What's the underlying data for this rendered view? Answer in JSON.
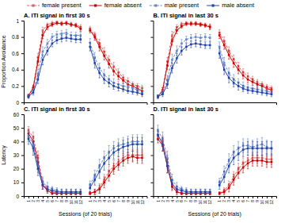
{
  "chart_data": [
    {
      "type": "line",
      "title": "A. ITI signal in first 30 s",
      "ylabel": "Proportion Avoidance",
      "categories": [
        "1",
        "2",
        "3",
        "4",
        "5",
        "6",
        "7",
        "8",
        "9",
        "10",
        "11",
        "12",
        null,
        "1",
        "2",
        "3",
        "4",
        "5",
        "6",
        "7",
        "8",
        "9",
        "10",
        "11",
        "12"
      ],
      "ylim": [
        0,
        1
      ],
      "yticks": [
        0,
        0.2,
        0.4,
        0.6,
        0.8,
        1
      ],
      "tick_labels": "y",
      "series": [
        {
          "color": "#e06060",
          "line_style": "dashed",
          "marker": "square",
          "values": [
            0.08,
            0.18,
            0.55,
            0.88,
            0.95,
            0.97,
            0.98,
            0.97,
            0.97,
            0.96,
            0.95,
            0.92,
            null,
            0.9,
            0.82,
            0.72,
            0.62,
            0.52,
            0.44,
            0.37,
            0.3,
            0.26,
            0.22,
            0.2,
            0.18
          ],
          "errors": [
            0.02,
            0.03,
            0.05,
            0.04,
            0.02,
            0.02,
            0.01,
            0.02,
            0.02,
            0.02,
            0.02,
            0.03,
            null,
            0.03,
            0.04,
            0.05,
            0.05,
            0.05,
            0.05,
            0.04,
            0.04,
            0.04,
            0.03,
            0.03,
            0.03
          ]
        },
        {
          "color": "#cc0000",
          "line_style": "solid",
          "marker": "square",
          "values": [
            0.08,
            0.18,
            0.5,
            0.82,
            0.92,
            0.95,
            0.97,
            0.96,
            0.97,
            0.95,
            0.94,
            0.9,
            null,
            0.88,
            0.8,
            0.68,
            0.57,
            0.47,
            0.38,
            0.32,
            0.27,
            0.22,
            0.2,
            0.17,
            0.14
          ],
          "errors": [
            0.02,
            0.03,
            0.05,
            0.04,
            0.03,
            0.02,
            0.02,
            0.02,
            0.02,
            0.02,
            0.02,
            0.03,
            null,
            0.03,
            0.04,
            0.05,
            0.05,
            0.05,
            0.05,
            0.04,
            0.04,
            0.04,
            0.03,
            0.03,
            0.03
          ]
        },
        {
          "color": "#6688cc",
          "line_style": "dashed",
          "marker": "square",
          "values": [
            0.07,
            0.14,
            0.35,
            0.62,
            0.72,
            0.8,
            0.83,
            0.84,
            0.85,
            0.82,
            0.82,
            0.82,
            null,
            0.73,
            0.55,
            0.42,
            0.34,
            0.28,
            0.24,
            0.22,
            0.2,
            0.19,
            0.18,
            0.15,
            0.12
          ],
          "errors": [
            0.02,
            0.03,
            0.05,
            0.06,
            0.05,
            0.04,
            0.04,
            0.04,
            0.04,
            0.04,
            0.04,
            0.04,
            null,
            0.05,
            0.06,
            0.06,
            0.06,
            0.05,
            0.05,
            0.04,
            0.04,
            0.04,
            0.03,
            0.03,
            0.03
          ]
        },
        {
          "color": "#2244aa",
          "line_style": "solid",
          "marker": "square",
          "values": [
            0.07,
            0.12,
            0.28,
            0.52,
            0.63,
            0.72,
            0.76,
            0.78,
            0.79,
            0.78,
            0.77,
            0.77,
            null,
            0.68,
            0.48,
            0.36,
            0.28,
            0.24,
            0.2,
            0.18,
            0.16,
            0.14,
            0.13,
            0.12,
            0.1
          ],
          "errors": [
            0.02,
            0.03,
            0.05,
            0.06,
            0.05,
            0.04,
            0.04,
            0.04,
            0.04,
            0.04,
            0.04,
            0.04,
            null,
            0.05,
            0.06,
            0.06,
            0.05,
            0.05,
            0.04,
            0.04,
            0.03,
            0.03,
            0.03,
            0.03,
            0.03
          ]
        }
      ]
    },
    {
      "type": "line",
      "title": "B. ITI signal in last 30 s",
      "categories": [
        "1",
        "2",
        "3",
        "4",
        "5",
        "6",
        "7",
        "8",
        "9",
        "10",
        "11",
        "12",
        null,
        "1",
        "2",
        "3",
        "4",
        "5",
        "6",
        "7",
        "8",
        "9",
        "10",
        "11",
        "12"
      ],
      "ylim": [
        0,
        1
      ],
      "yticks": [
        0,
        0.2,
        0.4,
        0.6,
        0.8,
        1
      ],
      "tick_labels": false,
      "series": [
        {
          "color": "#e06060",
          "line_style": "dashed",
          "marker": "square",
          "values": [
            0.07,
            0.15,
            0.5,
            0.82,
            0.92,
            0.96,
            0.97,
            0.97,
            0.97,
            0.96,
            0.95,
            0.93,
            null,
            0.85,
            0.75,
            0.63,
            0.53,
            0.44,
            0.37,
            0.32,
            0.28,
            0.24,
            0.22,
            0.19,
            0.17
          ],
          "errors": [
            0.02,
            0.03,
            0.05,
            0.05,
            0.03,
            0.02,
            0.02,
            0.02,
            0.02,
            0.02,
            0.02,
            0.03,
            null,
            0.04,
            0.05,
            0.05,
            0.05,
            0.05,
            0.04,
            0.04,
            0.04,
            0.04,
            0.03,
            0.03,
            0.03
          ]
        },
        {
          "color": "#cc0000",
          "line_style": "solid",
          "marker": "square",
          "values": [
            0.07,
            0.15,
            0.45,
            0.75,
            0.88,
            0.93,
            0.96,
            0.96,
            0.96,
            0.95,
            0.94,
            0.92,
            null,
            0.82,
            0.7,
            0.58,
            0.48,
            0.4,
            0.33,
            0.28,
            0.25,
            0.22,
            0.2,
            0.17,
            0.15
          ],
          "errors": [
            0.02,
            0.03,
            0.05,
            0.05,
            0.04,
            0.02,
            0.02,
            0.02,
            0.02,
            0.02,
            0.02,
            0.03,
            null,
            0.04,
            0.05,
            0.05,
            0.05,
            0.05,
            0.04,
            0.04,
            0.04,
            0.04,
            0.03,
            0.03,
            0.03
          ]
        },
        {
          "color": "#6688cc",
          "line_style": "dashed",
          "marker": "square",
          "values": [
            0.07,
            0.12,
            0.28,
            0.52,
            0.63,
            0.72,
            0.77,
            0.79,
            0.8,
            0.79,
            0.8,
            0.79,
            null,
            0.68,
            0.48,
            0.36,
            0.28,
            0.24,
            0.2,
            0.18,
            0.17,
            0.16,
            0.15,
            0.14,
            0.12
          ],
          "errors": [
            0.02,
            0.03,
            0.05,
            0.07,
            0.06,
            0.05,
            0.04,
            0.04,
            0.04,
            0.04,
            0.04,
            0.04,
            null,
            0.06,
            0.07,
            0.06,
            0.06,
            0.05,
            0.05,
            0.04,
            0.04,
            0.04,
            0.03,
            0.03,
            0.03
          ]
        },
        {
          "color": "#2244aa",
          "line_style": "solid",
          "marker": "square",
          "values": [
            0.07,
            0.1,
            0.22,
            0.42,
            0.54,
            0.63,
            0.68,
            0.71,
            0.72,
            0.71,
            0.7,
            0.7,
            null,
            0.6,
            0.4,
            0.3,
            0.24,
            0.2,
            0.17,
            0.15,
            0.14,
            0.13,
            0.12,
            0.11,
            0.1
          ],
          "errors": [
            0.02,
            0.03,
            0.05,
            0.06,
            0.06,
            0.05,
            0.04,
            0.04,
            0.04,
            0.04,
            0.04,
            0.04,
            null,
            0.06,
            0.06,
            0.06,
            0.05,
            0.05,
            0.04,
            0.04,
            0.03,
            0.03,
            0.03,
            0.03,
            0.03
          ]
        }
      ]
    },
    {
      "type": "line",
      "title": "C. ITI signal in first 30 s",
      "ylabel": "Latency",
      "xlabel": "Sessions (of 20 trials)",
      "categories": [
        "1",
        "2",
        "3",
        "4",
        "5",
        "6",
        "7",
        "8",
        "9",
        "10",
        "11",
        "12",
        null,
        "1",
        "2",
        "3",
        "4",
        "5",
        "6",
        "7",
        "8",
        "9",
        "10",
        "11",
        "12"
      ],
      "ylim": [
        0,
        60
      ],
      "yticks": [
        0,
        10,
        20,
        30,
        40,
        50,
        60
      ],
      "series": [
        {
          "color": "#e06060",
          "line_style": "dashed",
          "marker": "square",
          "values": [
            48,
            43,
            28,
            10,
            5,
            3,
            2,
            2,
            2,
            2,
            2,
            2,
            null,
            2,
            3,
            6,
            12,
            18,
            22,
            25,
            28,
            30,
            30,
            30,
            30
          ],
          "errors": [
            3,
            4,
            5,
            3,
            2,
            1,
            1,
            1,
            1,
            1,
            1,
            1,
            null,
            1,
            2,
            3,
            4,
            4,
            4,
            4,
            4,
            4,
            4,
            4,
            4
          ]
        },
        {
          "color": "#cc0000",
          "line_style": "solid",
          "marker": "square",
          "values": [
            46,
            40,
            25,
            8,
            4,
            2,
            2,
            2,
            2,
            2,
            2,
            2,
            null,
            2,
            3,
            5,
            10,
            15,
            20,
            23,
            26,
            28,
            29,
            28,
            28
          ],
          "errors": [
            3,
            4,
            5,
            3,
            2,
            1,
            1,
            1,
            1,
            1,
            1,
            1,
            null,
            1,
            2,
            3,
            4,
            4,
            4,
            4,
            4,
            4,
            4,
            4,
            4
          ]
        },
        {
          "color": "#6688cc",
          "line_style": "dashed",
          "marker": "square",
          "values": [
            44,
            38,
            22,
            10,
            7,
            5,
            4,
            3,
            3,
            3,
            3,
            3,
            null,
            8,
            15,
            22,
            28,
            32,
            35,
            37,
            38,
            39,
            40,
            40,
            40
          ],
          "errors": [
            4,
            5,
            5,
            4,
            3,
            2,
            2,
            2,
            2,
            2,
            2,
            2,
            null,
            3,
            4,
            5,
            5,
            5,
            5,
            5,
            5,
            5,
            5,
            5,
            5
          ]
        },
        {
          "color": "#2244aa",
          "line_style": "solid",
          "marker": "square",
          "values": [
            42,
            35,
            20,
            8,
            5,
            4,
            3,
            3,
            3,
            3,
            3,
            3,
            null,
            6,
            12,
            18,
            24,
            28,
            32,
            34,
            36,
            37,
            38,
            38,
            38
          ],
          "errors": [
            4,
            5,
            5,
            3,
            2,
            2,
            2,
            2,
            2,
            2,
            2,
            2,
            null,
            3,
            4,
            5,
            5,
            5,
            5,
            5,
            5,
            5,
            5,
            5,
            5
          ]
        }
      ]
    },
    {
      "type": "line",
      "title": "D. ITI signal in last 30 s",
      "xlabel": "Sessions (of 20 trials)",
      "categories": [
        "1",
        "2",
        "3",
        "4",
        "5",
        "6",
        "7",
        "8",
        "9",
        "10",
        "11",
        "12",
        null,
        "1",
        "2",
        "3",
        "4",
        "5",
        "6",
        "7",
        "8",
        "9",
        "10",
        "11",
        "12"
      ],
      "ylim": [
        0,
        60
      ],
      "yticks": [
        0,
        10,
        20,
        30,
        40,
        50,
        60
      ],
      "tick_labels": "x",
      "legend": "top",
      "series": [
        {
          "name": "female present",
          "color": "#e06060",
          "line_style": "dashed",
          "marker": "square",
          "values": [
            44,
            40,
            25,
            8,
            4,
            2,
            2,
            2,
            2,
            2,
            2,
            2,
            null,
            2,
            4,
            8,
            14,
            20,
            24,
            26,
            28,
            28,
            28,
            27,
            27
          ],
          "errors": [
            3,
            4,
            5,
            3,
            2,
            1,
            1,
            1,
            1,
            1,
            1,
            1,
            null,
            1,
            2,
            3,
            4,
            4,
            4,
            4,
            4,
            4,
            4,
            4,
            4
          ]
        },
        {
          "name": "female absent",
          "color": "#cc0000",
          "line_style": "solid",
          "marker": "square",
          "values": [
            42,
            37,
            22,
            7,
            3,
            2,
            2,
            2,
            2,
            2,
            2,
            2,
            null,
            2,
            3,
            6,
            12,
            17,
            21,
            24,
            26,
            26,
            26,
            25,
            25
          ],
          "errors": [
            3,
            4,
            5,
            3,
            2,
            1,
            1,
            1,
            1,
            1,
            1,
            1,
            null,
            1,
            2,
            3,
            4,
            4,
            4,
            4,
            4,
            4,
            4,
            4,
            4
          ]
        },
        {
          "name": "male present",
          "color": "#6688cc",
          "line_style": "dashed",
          "marker": "square",
          "values": [
            48,
            42,
            28,
            12,
            7,
            5,
            4,
            3,
            3,
            3,
            3,
            3,
            null,
            10,
            18,
            26,
            32,
            35,
            37,
            37,
            36,
            37,
            38,
            36,
            35
          ],
          "errors": [
            4,
            5,
            5,
            4,
            3,
            2,
            2,
            2,
            2,
            2,
            2,
            2,
            null,
            3,
            4,
            5,
            5,
            5,
            5,
            5,
            5,
            5,
            5,
            5,
            5
          ]
        },
        {
          "name": "male absent",
          "color": "#2244aa",
          "line_style": "solid",
          "marker": "square",
          "values": [
            45,
            38,
            22,
            9,
            5,
            4,
            3,
            3,
            3,
            3,
            3,
            3,
            null,
            8,
            14,
            22,
            28,
            31,
            34,
            35,
            35,
            35,
            35,
            35,
            35
          ],
          "errors": [
            4,
            5,
            5,
            3,
            2,
            2,
            2,
            2,
            2,
            2,
            2,
            2,
            null,
            3,
            4,
            5,
            5,
            5,
            5,
            5,
            5,
            5,
            5,
            5,
            5
          ]
        }
      ]
    }
  ]
}
